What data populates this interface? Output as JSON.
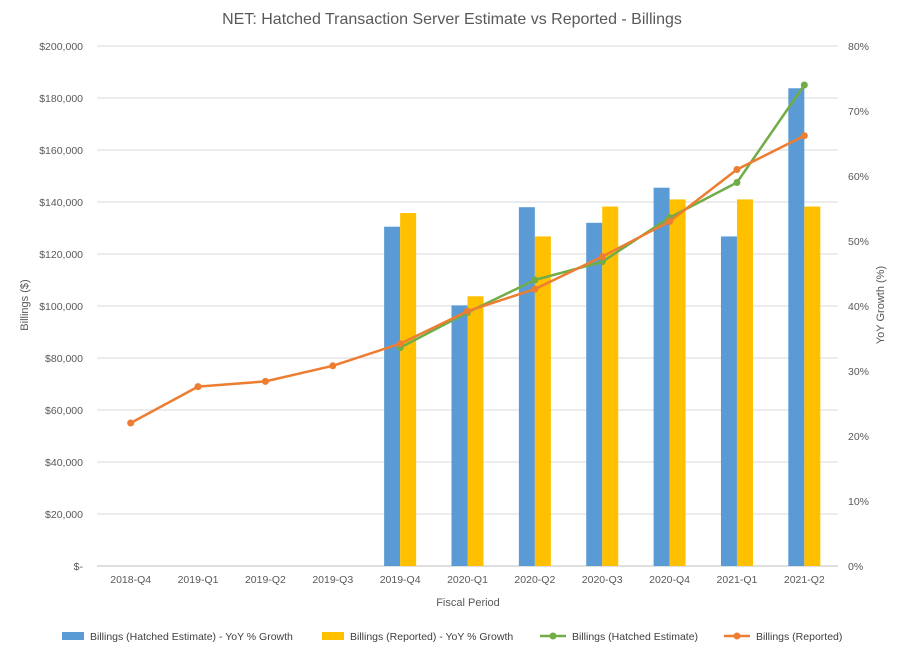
{
  "chart_data": {
    "type": "bar",
    "title": "NET: Hatched Transaction Server Estimate vs Reported - Billings",
    "xlabel": "Fiscal Period",
    "ylabel": "Billings  ($)",
    "y2label": "YoY Growth (%)",
    "categories": [
      "2018-Q4",
      "2019-Q1",
      "2019-Q2",
      "2019-Q3",
      "2019-Q4",
      "2020-Q1",
      "2020-Q2",
      "2020-Q3",
      "2020-Q4",
      "2021-Q1",
      "2021-Q2"
    ],
    "ylim": [
      0,
      200000
    ],
    "y2lim": [
      0,
      80
    ],
    "yticks": [
      "$-",
      "$20,000",
      "$40,000",
      "$60,000",
      "$80,000",
      "$100,000",
      "$120,000",
      "$140,000",
      "$160,000",
      "$180,000",
      "$200,000"
    ],
    "y2ticks": [
      "0%",
      "10%",
      "20%",
      "30%",
      "40%",
      "50%",
      "60%",
      "70%",
      "80%"
    ],
    "grid": true,
    "legend_position": "bottom",
    "series": [
      {
        "name": "Billings (Hatched Estimate) - YoY % Growth",
        "kind": "bar",
        "axis": "right",
        "color": "#5B9BD5",
        "values": [
          null,
          null,
          null,
          null,
          52.2,
          40.1,
          55.2,
          52.8,
          58.2,
          50.7,
          73.5
        ]
      },
      {
        "name": "Billings (Reported) - YoY % Growth",
        "kind": "bar",
        "axis": "right",
        "color": "#FFC000",
        "values": [
          null,
          null,
          null,
          null,
          54.3,
          41.5,
          50.7,
          55.3,
          56.4,
          56.4,
          55.3
        ]
      },
      {
        "name": "Billings (Hatched Estimate)",
        "kind": "line",
        "axis": "left",
        "color": "#70AD47",
        "values": [
          null,
          null,
          null,
          null,
          84000,
          97500,
          110000,
          117000,
          134000,
          147500,
          185000
        ]
      },
      {
        "name": "Billings (Reported)",
        "kind": "line",
        "axis": "left",
        "color": "#ED7D31",
        "values": [
          55000,
          69000,
          71000,
          77000,
          85500,
          98000,
          106500,
          119000,
          132500,
          152500,
          165500
        ]
      }
    ]
  }
}
